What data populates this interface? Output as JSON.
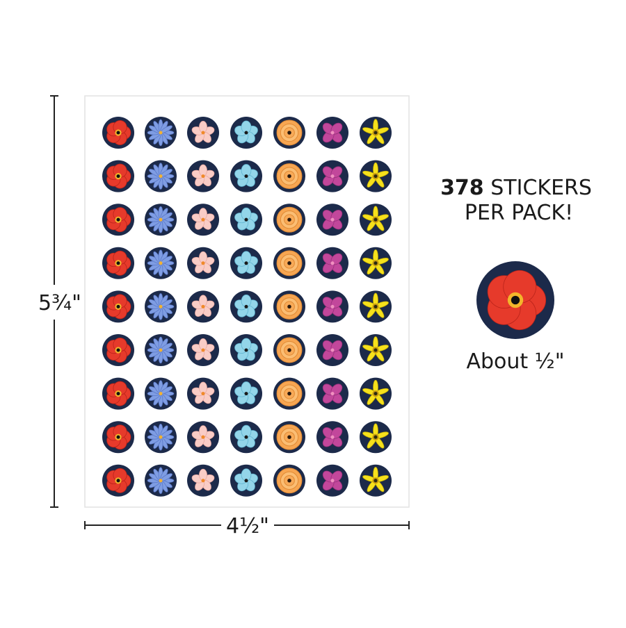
{
  "sheet": {
    "height_label": "5¾\"",
    "width_label": "4½\""
  },
  "promo": {
    "count": 378,
    "unit": "STICKERS",
    "line2": "PER PACK!"
  },
  "sample": {
    "size_label": "About ½\""
  }
}
